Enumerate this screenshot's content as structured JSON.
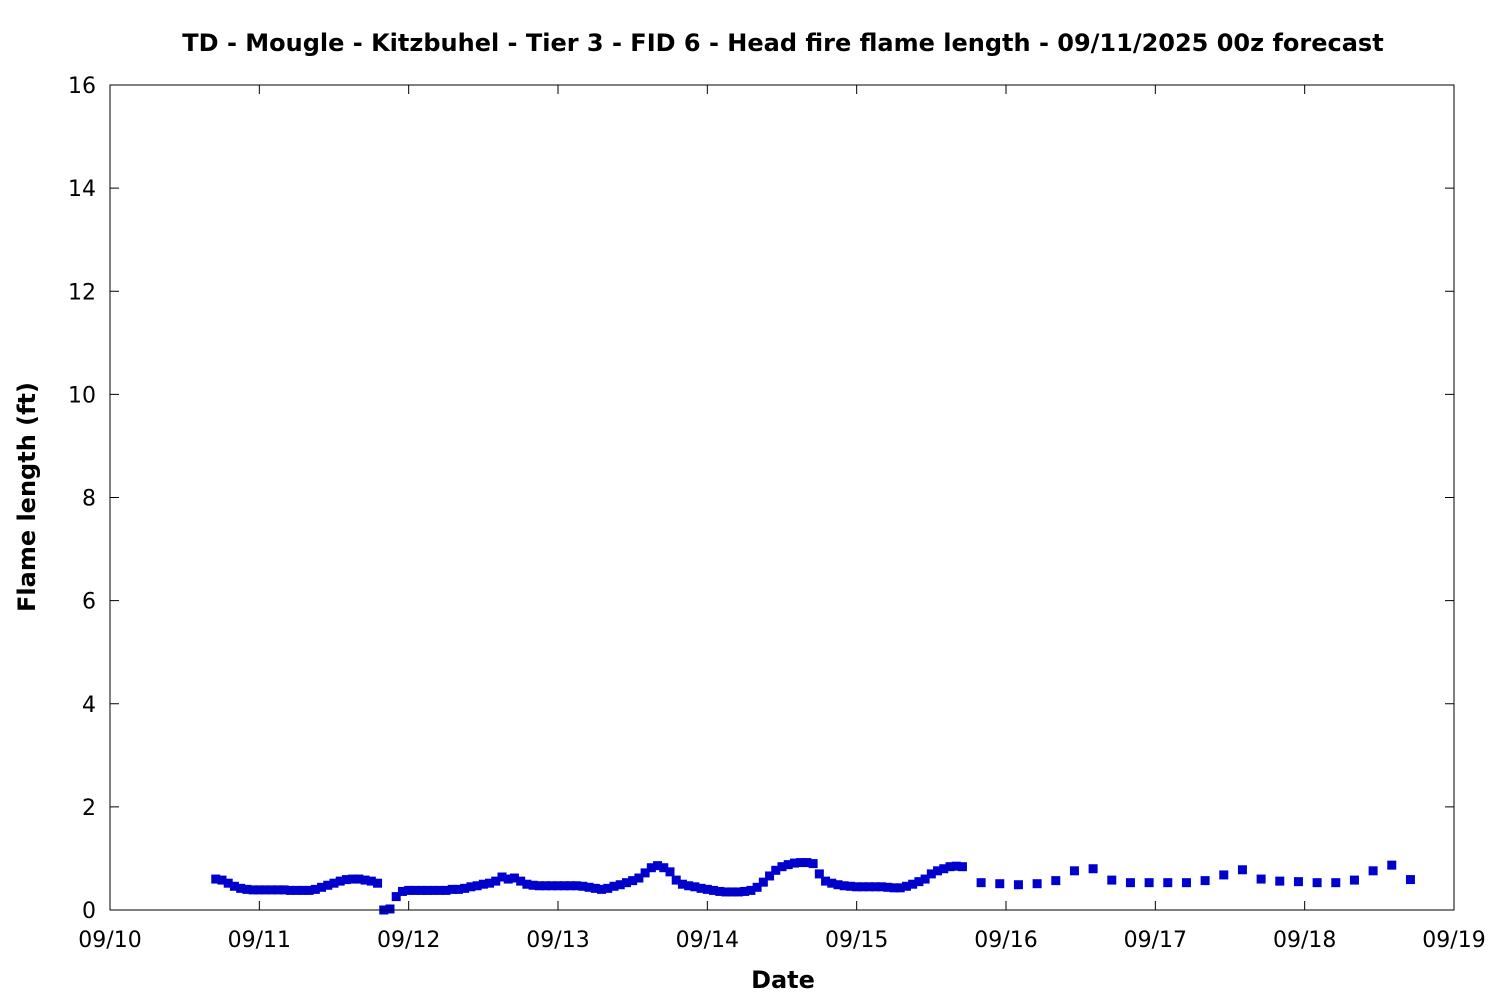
{
  "chart_data": {
    "type": "scatter",
    "title": "TD - Mougle - Kitzbuhel - Tier 3 - FID 6 - Head fire flame length - 09/11/2025 00z forecast",
    "xlabel": "Date",
    "ylabel": "Flame length (ft)",
    "x_tick_labels": [
      "09/10",
      "09/11",
      "09/12",
      "09/13",
      "09/14",
      "09/15",
      "09/16",
      "09/17",
      "09/18",
      "09/19"
    ],
    "y_tick_labels": [
      "0",
      "2",
      "4",
      "6",
      "8",
      "10",
      "12",
      "14",
      "16"
    ],
    "xlim": [
      "2025-09-10T00:00",
      "2025-09-19T00:00"
    ],
    "ylim": [
      0,
      16
    ],
    "grid": false,
    "marker_color": "#0000cc",
    "series": [
      {
        "values": [
          [
            "2025-09-10T17:00",
            0.6
          ],
          [
            "2025-09-10T18:00",
            0.58
          ],
          [
            "2025-09-10T19:00",
            0.52
          ],
          [
            "2025-09-10T20:00",
            0.46
          ],
          [
            "2025-09-10T21:00",
            0.42
          ],
          [
            "2025-09-10T22:00",
            0.4
          ],
          [
            "2025-09-10T23:00",
            0.39
          ],
          [
            "2025-09-11T00:00",
            0.39
          ],
          [
            "2025-09-11T01:00",
            0.39
          ],
          [
            "2025-09-11T02:00",
            0.39
          ],
          [
            "2025-09-11T03:00",
            0.39
          ],
          [
            "2025-09-11T04:00",
            0.39
          ],
          [
            "2025-09-11T05:00",
            0.38
          ],
          [
            "2025-09-11T06:00",
            0.38
          ],
          [
            "2025-09-11T07:00",
            0.38
          ],
          [
            "2025-09-11T08:00",
            0.38
          ],
          [
            "2025-09-11T09:00",
            0.4
          ],
          [
            "2025-09-11T10:00",
            0.44
          ],
          [
            "2025-09-11T11:00",
            0.48
          ],
          [
            "2025-09-11T12:00",
            0.52
          ],
          [
            "2025-09-11T13:00",
            0.56
          ],
          [
            "2025-09-11T14:00",
            0.59
          ],
          [
            "2025-09-11T15:00",
            0.6
          ],
          [
            "2025-09-11T16:00",
            0.6
          ],
          [
            "2025-09-11T17:00",
            0.58
          ],
          [
            "2025-09-11T18:00",
            0.56
          ],
          [
            "2025-09-11T19:00",
            0.52
          ],
          [
            "2025-09-11T20:00",
            0.0
          ],
          [
            "2025-09-11T21:00",
            0.02
          ],
          [
            "2025-09-11T22:00",
            0.26
          ],
          [
            "2025-09-11T23:00",
            0.36
          ],
          [
            "2025-09-12T00:00",
            0.38
          ],
          [
            "2025-09-12T01:00",
            0.38
          ],
          [
            "2025-09-12T02:00",
            0.38
          ],
          [
            "2025-09-12T03:00",
            0.38
          ],
          [
            "2025-09-12T04:00",
            0.38
          ],
          [
            "2025-09-12T05:00",
            0.38
          ],
          [
            "2025-09-12T06:00",
            0.38
          ],
          [
            "2025-09-12T07:00",
            0.4
          ],
          [
            "2025-09-12T08:00",
            0.4
          ],
          [
            "2025-09-12T09:00",
            0.42
          ],
          [
            "2025-09-12T10:00",
            0.45
          ],
          [
            "2025-09-12T11:00",
            0.47
          ],
          [
            "2025-09-12T12:00",
            0.5
          ],
          [
            "2025-09-12T13:00",
            0.52
          ],
          [
            "2025-09-12T14:00",
            0.56
          ],
          [
            "2025-09-12T15:00",
            0.64
          ],
          [
            "2025-09-12T16:00",
            0.6
          ],
          [
            "2025-09-12T17:00",
            0.62
          ],
          [
            "2025-09-12T18:00",
            0.56
          ],
          [
            "2025-09-12T19:00",
            0.5
          ],
          [
            "2025-09-12T20:00",
            0.48
          ],
          [
            "2025-09-12T21:00",
            0.47
          ],
          [
            "2025-09-12T22:00",
            0.47
          ],
          [
            "2025-09-12T23:00",
            0.47
          ],
          [
            "2025-09-13T00:00",
            0.47
          ],
          [
            "2025-09-13T01:00",
            0.47
          ],
          [
            "2025-09-13T02:00",
            0.47
          ],
          [
            "2025-09-13T03:00",
            0.47
          ],
          [
            "2025-09-13T04:00",
            0.46
          ],
          [
            "2025-09-13T05:00",
            0.44
          ],
          [
            "2025-09-13T06:00",
            0.42
          ],
          [
            "2025-09-13T07:00",
            0.4
          ],
          [
            "2025-09-13T08:00",
            0.42
          ],
          [
            "2025-09-13T09:00",
            0.46
          ],
          [
            "2025-09-13T10:00",
            0.49
          ],
          [
            "2025-09-13T11:00",
            0.53
          ],
          [
            "2025-09-13T12:00",
            0.57
          ],
          [
            "2025-09-13T13:00",
            0.62
          ],
          [
            "2025-09-13T14:00",
            0.72
          ],
          [
            "2025-09-13T15:00",
            0.82
          ],
          [
            "2025-09-13T16:00",
            0.86
          ],
          [
            "2025-09-13T17:00",
            0.82
          ],
          [
            "2025-09-13T18:00",
            0.74
          ],
          [
            "2025-09-13T19:00",
            0.58
          ],
          [
            "2025-09-13T20:00",
            0.5
          ],
          [
            "2025-09-13T21:00",
            0.47
          ],
          [
            "2025-09-13T22:00",
            0.45
          ],
          [
            "2025-09-13T23:00",
            0.42
          ],
          [
            "2025-09-14T00:00",
            0.4
          ],
          [
            "2025-09-14T01:00",
            0.38
          ],
          [
            "2025-09-14T02:00",
            0.36
          ],
          [
            "2025-09-14T03:00",
            0.35
          ],
          [
            "2025-09-14T04:00",
            0.35
          ],
          [
            "2025-09-14T05:00",
            0.35
          ],
          [
            "2025-09-14T06:00",
            0.36
          ],
          [
            "2025-09-14T07:00",
            0.38
          ],
          [
            "2025-09-14T08:00",
            0.44
          ],
          [
            "2025-09-14T09:00",
            0.54
          ],
          [
            "2025-09-14T10:00",
            0.66
          ],
          [
            "2025-09-14T11:00",
            0.77
          ],
          [
            "2025-09-14T12:00",
            0.84
          ],
          [
            "2025-09-14T13:00",
            0.88
          ],
          [
            "2025-09-14T14:00",
            0.91
          ],
          [
            "2025-09-14T15:00",
            0.92
          ],
          [
            "2025-09-14T16:00",
            0.92
          ],
          [
            "2025-09-14T17:00",
            0.9
          ],
          [
            "2025-09-14T18:00",
            0.7
          ],
          [
            "2025-09-14T19:00",
            0.56
          ],
          [
            "2025-09-14T20:00",
            0.52
          ],
          [
            "2025-09-14T21:00",
            0.49
          ],
          [
            "2025-09-14T22:00",
            0.47
          ],
          [
            "2025-09-14T23:00",
            0.46
          ],
          [
            "2025-09-15T00:00",
            0.45
          ],
          [
            "2025-09-15T01:00",
            0.45
          ],
          [
            "2025-09-15T02:00",
            0.45
          ],
          [
            "2025-09-15T03:00",
            0.45
          ],
          [
            "2025-09-15T04:00",
            0.45
          ],
          [
            "2025-09-15T05:00",
            0.44
          ],
          [
            "2025-09-15T06:00",
            0.43
          ],
          [
            "2025-09-15T07:00",
            0.43
          ],
          [
            "2025-09-15T08:00",
            0.46
          ],
          [
            "2025-09-15T09:00",
            0.5
          ],
          [
            "2025-09-15T10:00",
            0.55
          ],
          [
            "2025-09-15T11:00",
            0.6
          ],
          [
            "2025-09-15T12:00",
            0.7
          ],
          [
            "2025-09-15T13:00",
            0.76
          ],
          [
            "2025-09-15T14:00",
            0.8
          ],
          [
            "2025-09-15T15:00",
            0.84
          ],
          [
            "2025-09-15T16:00",
            0.85
          ],
          [
            "2025-09-15T17:00",
            0.84
          ],
          [
            "2025-09-15T20:00",
            0.53
          ],
          [
            "2025-09-15T23:00",
            0.51
          ],
          [
            "2025-09-16T02:00",
            0.49
          ],
          [
            "2025-09-16T05:00",
            0.51
          ],
          [
            "2025-09-16T08:00",
            0.57
          ],
          [
            "2025-09-16T11:00",
            0.76
          ],
          [
            "2025-09-16T14:00",
            0.8
          ],
          [
            "2025-09-16T17:00",
            0.58
          ],
          [
            "2025-09-16T20:00",
            0.53
          ],
          [
            "2025-09-16T23:00",
            0.53
          ],
          [
            "2025-09-17T02:00",
            0.53
          ],
          [
            "2025-09-17T05:00",
            0.53
          ],
          [
            "2025-09-17T08:00",
            0.57
          ],
          [
            "2025-09-17T11:00",
            0.68
          ],
          [
            "2025-09-17T14:00",
            0.78
          ],
          [
            "2025-09-17T17:00",
            0.6
          ],
          [
            "2025-09-17T20:00",
            0.56
          ],
          [
            "2025-09-17T23:00",
            0.55
          ],
          [
            "2025-09-18T02:00",
            0.53
          ],
          [
            "2025-09-18T05:00",
            0.53
          ],
          [
            "2025-09-18T08:00",
            0.58
          ],
          [
            "2025-09-18T11:00",
            0.76
          ],
          [
            "2025-09-18T14:00",
            0.87
          ],
          [
            "2025-09-18T17:00",
            0.59
          ]
        ]
      }
    ]
  }
}
